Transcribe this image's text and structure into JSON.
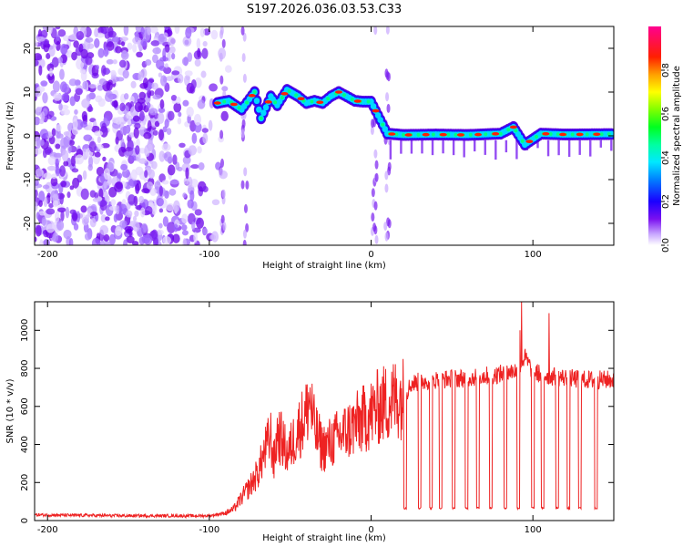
{
  "title": "S197.2026.036.03.53.C33",
  "chart_data": [
    {
      "type": "heatmap",
      "title": "S197.2026.036.03.53.C33",
      "xlabel": "Height of straight line (km)",
      "ylabel": "Frequency (Hz)",
      "xlim": [
        -208,
        150
      ],
      "ylim": [
        -25,
        25
      ],
      "xticks": [
        "-200",
        "-100",
        "0",
        "100"
      ],
      "xtick_values": [
        -200,
        -100,
        0,
        100
      ],
      "yticks": [
        "-20",
        "-10",
        "0",
        "10",
        "20"
      ],
      "ytick_values": [
        -20,
        -10,
        0,
        10,
        20
      ],
      "noise_region_x": [
        -208,
        -85
      ],
      "ridge": [
        {
          "x": -95,
          "y": 7.5
        },
        {
          "x": -88,
          "y": 8
        },
        {
          "x": -80,
          "y": 6
        },
        {
          "x": -72,
          "y": 10
        },
        {
          "x": -68,
          "y": 4
        },
        {
          "x": -62,
          "y": 9
        },
        {
          "x": -58,
          "y": 7
        },
        {
          "x": -52,
          "y": 10.5
        },
        {
          "x": -45,
          "y": 9
        },
        {
          "x": -40,
          "y": 7.5
        },
        {
          "x": -35,
          "y": 8
        },
        {
          "x": -30,
          "y": 7.5
        },
        {
          "x": -25,
          "y": 9
        },
        {
          "x": -20,
          "y": 10
        },
        {
          "x": -15,
          "y": 9
        },
        {
          "x": -10,
          "y": 8
        },
        {
          "x": -5,
          "y": 7.8
        },
        {
          "x": 0,
          "y": 7.8
        },
        {
          "x": 10,
          "y": 0.5
        },
        {
          "x": 20,
          "y": 0.2
        },
        {
          "x": 40,
          "y": 0.3
        },
        {
          "x": 60,
          "y": 0.2
        },
        {
          "x": 80,
          "y": 0.5
        },
        {
          "x": 88,
          "y": 2
        },
        {
          "x": 95,
          "y": -2
        },
        {
          "x": 105,
          "y": 0.5
        },
        {
          "x": 120,
          "y": 0.3
        },
        {
          "x": 150,
          "y": 0.4
        }
      ],
      "colorbar": {
        "label": "Normalized spectral amplitude",
        "range": [
          0.0,
          1.0
        ],
        "ticks": [
          "0.0",
          "0.2",
          "0.4",
          "0.6",
          "0.8"
        ],
        "tick_values": [
          0.0,
          0.2,
          0.4,
          0.6,
          0.8
        ],
        "colors": [
          "#ffffff",
          "#b48cff",
          "#6a00e8",
          "#0000ff",
          "#00b4ff",
          "#00ffc8",
          "#00ff00",
          "#c8ff00",
          "#ffff00",
          "#ff8000",
          "#ff0000",
          "#ff0080"
        ]
      }
    },
    {
      "type": "line",
      "xlabel": "Height of straight line (km)",
      "ylabel": "SNR (10 * v/v)",
      "xlim": [
        -208,
        150
      ],
      "ylim": [
        0,
        1150
      ],
      "xticks": [
        "-200",
        "-100",
        "0",
        "100"
      ],
      "xtick_values": [
        -200,
        -100,
        0,
        100
      ],
      "yticks": [
        "0",
        "200",
        "400",
        "600",
        "800",
        "1000"
      ],
      "ytick_values": [
        0,
        200,
        400,
        600,
        800,
        1000
      ],
      "series": [
        {
          "name": "SNR",
          "color": "#ee2222",
          "x": [
            -208,
            -150,
            -100,
            -90,
            -85,
            -80,
            -75,
            -70,
            -65,
            -62,
            -60,
            -58,
            -55,
            -52,
            -50,
            -45,
            -40,
            -38,
            -35,
            -32,
            -30,
            -25,
            -20,
            -15,
            -10,
            -5,
            0,
            5,
            10,
            15,
            19,
            20,
            25,
            30,
            40,
            50,
            60,
            70,
            80,
            90,
            95,
            100,
            110,
            120,
            130,
            140,
            150
          ],
          "y": [
            30,
            25,
            25,
            40,
            60,
            120,
            180,
            250,
            380,
            440,
            300,
            460,
            420,
            350,
            380,
            480,
            560,
            650,
            480,
            420,
            380,
            410,
            440,
            470,
            500,
            530,
            560,
            600,
            620,
            640,
            650,
            650,
            720,
            730,
            740,
            745,
            750,
            760,
            770,
            790,
            860,
            780,
            760,
            750,
            740,
            740,
            740
          ],
          "dropouts_x": [
            21,
            30,
            37,
            43,
            51,
            59,
            66,
            74,
            83,
            91,
            100,
            106,
            115,
            122,
            129,
            139
          ],
          "dropout_level": 60,
          "spikes": [
            {
              "x": 93,
              "y": 1150
            },
            {
              "x": 110,
              "y": 1090
            },
            {
              "x": 92,
              "y": 1000
            }
          ]
        }
      ]
    }
  ]
}
